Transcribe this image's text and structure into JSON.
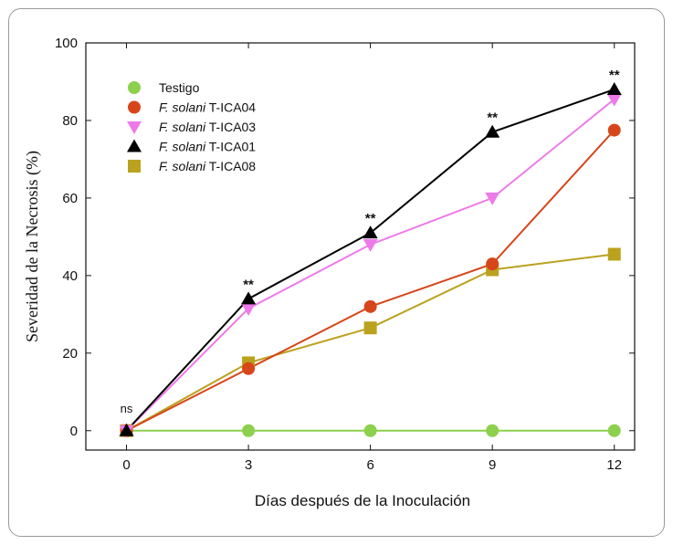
{
  "chart_data": {
    "type": "line",
    "xlabel": "Días después de la Inoculación",
    "ylabel": "Severidad de la Necrosis (%)",
    "x": [
      0,
      3,
      6,
      9,
      12
    ],
    "xlim": [
      -1,
      12.5
    ],
    "ylim": [
      -5,
      100
    ],
    "xticks": [
      0,
      3,
      6,
      9,
      12
    ],
    "yticks": [
      0,
      20,
      40,
      60,
      80,
      100
    ],
    "grid": false,
    "legend_position": "top-left",
    "series": [
      {
        "key": "testigo",
        "legend_plain": "Testigo",
        "legend_italic": "",
        "legend_suffix": "",
        "marker": "circle",
        "color": "#8cd04e",
        "values": [
          0,
          0,
          0,
          0,
          0
        ]
      },
      {
        "key": "t-ica04",
        "legend_plain": "",
        "legend_italic": "F. solani",
        "legend_suffix": " T-ICA04",
        "marker": "circle",
        "color": "#d7461a",
        "values": [
          0,
          16,
          32,
          43,
          77.5
        ]
      },
      {
        "key": "t-ica03",
        "legend_plain": "",
        "legend_italic": "F. solani",
        "legend_suffix": " T-ICA03",
        "marker": "triangle-down",
        "color": "#ee7aea",
        "values": [
          0,
          31.5,
          48,
          60,
          85.5
        ]
      },
      {
        "key": "t-ica01",
        "legend_plain": "",
        "legend_italic": "F. solani",
        "legend_suffix": " T-ICA01",
        "marker": "triangle-up",
        "color": "#000000",
        "values": [
          0,
          34,
          51,
          77,
          88
        ]
      },
      {
        "key": "t-ica08",
        "legend_plain": "",
        "legend_italic": "F. solani",
        "legend_suffix": " T-ICA08",
        "marker": "square",
        "color": "#bba21e",
        "values": [
          0,
          17.5,
          26.5,
          41.5,
          45.5
        ]
      }
    ],
    "annotations": [
      {
        "text": "ns",
        "x": 0,
        "y": 0,
        "style": "plain"
      },
      {
        "text": "**",
        "x": 3,
        "y": 34,
        "style": "star"
      },
      {
        "text": "**",
        "x": 6,
        "y": 51,
        "style": "star"
      },
      {
        "text": "**",
        "x": 9,
        "y": 77,
        "style": "star"
      },
      {
        "text": "**",
        "x": 12,
        "y": 88,
        "style": "star"
      }
    ]
  }
}
